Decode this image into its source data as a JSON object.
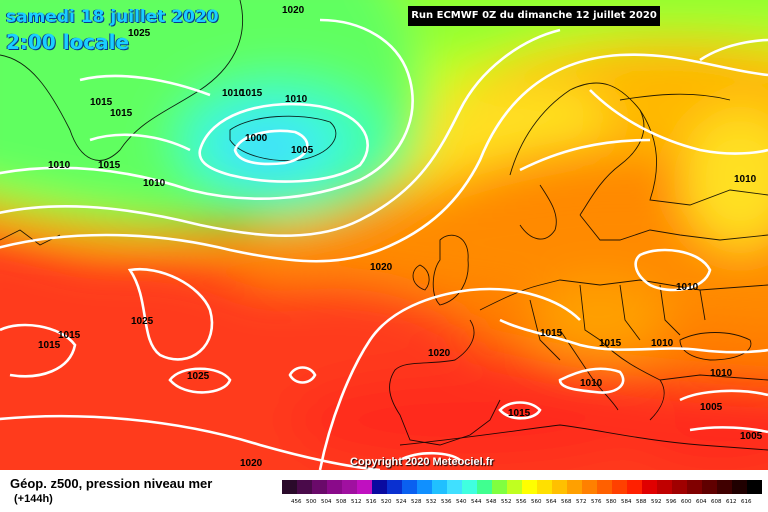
{
  "header": {
    "date_line": "samedi 18 juillet 2020",
    "time_line": "2:00 locale",
    "run_info": "Run ECMWF 0Z du dimanche 12 juillet 2020"
  },
  "map": {
    "pressure_labels": [
      "1020",
      "1025",
      "1015",
      "1015",
      "1010",
      "1015",
      "1010",
      "1010",
      "1015",
      "1010",
      "1000",
      "1005",
      "1020",
      "1010",
      "1015",
      "1015",
      "1025",
      "1025",
      "1015",
      "1020",
      "1015",
      "1010",
      "1010",
      "1010",
      "1010",
      "1005",
      "1005",
      "1020",
      "1015"
    ],
    "copyright": "Copyright 2020 Meteociel.fr"
  },
  "footer": {
    "parameter": "Géop. z500, pression niveau mer",
    "lead_time": "(+144h)"
  },
  "legend": {
    "colors": [
      "#2a0a2a",
      "#4a0a4a",
      "#6a0a6a",
      "#8a0a8a",
      "#a010a0",
      "#c010c0",
      "#0a0aa0",
      "#0a30d0",
      "#0a60f0",
      "#1090ff",
      "#20c0ff",
      "#40e0ff",
      "#40ffe0",
      "#40ff90",
      "#80ff40",
      "#c0ff20",
      "#ffff00",
      "#ffe000",
      "#ffc000",
      "#ffa000",
      "#ff8000",
      "#ff6000",
      "#ff4000",
      "#ff2000",
      "#e00000",
      "#c00000",
      "#a00000",
      "#800000",
      "#600000",
      "#400000",
      "#200000",
      "#000000"
    ],
    "labels": [
      "456",
      "500",
      "504",
      "508",
      "512",
      "516",
      "520",
      "524",
      "528",
      "532",
      "536",
      "540",
      "544",
      "548",
      "552",
      "556",
      "560",
      "564",
      "568",
      "572",
      "576",
      "580",
      "584",
      "588",
      "592",
      "596",
      "600",
      "604",
      "608",
      "612",
      "616"
    ]
  }
}
